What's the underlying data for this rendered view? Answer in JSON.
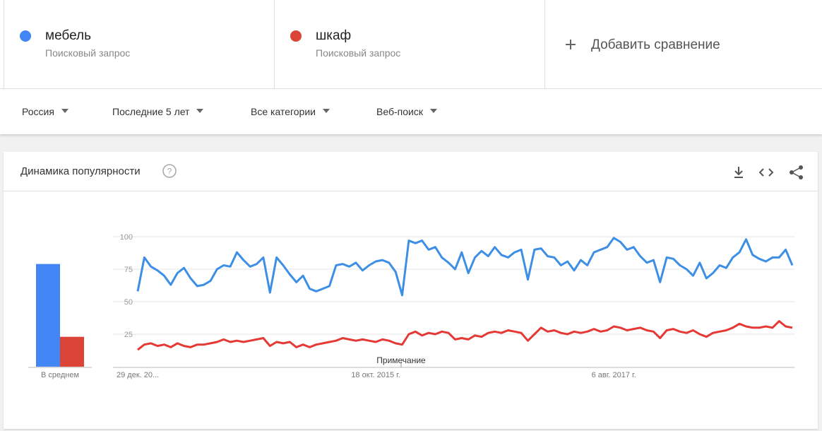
{
  "comparison": {
    "terms": [
      {
        "name": "мебель",
        "type": "Поисковый запрос"
      },
      {
        "name": "шкаф",
        "type": "Поисковый запрос"
      }
    ],
    "add": "Добавить сравнение"
  },
  "filters": [
    "Россия",
    "Последние 5 лет",
    "Все категории",
    "Веб-поиск"
  ],
  "card": {
    "title": "Динамика популярности"
  },
  "chart_data": {
    "type": "line",
    "average_label": "В среднем",
    "annotation": "Примечание",
    "xlim": [
      0,
      99
    ],
    "xticks": [
      {
        "value": 0,
        "label": "29 дек. 20..."
      },
      {
        "value": 36,
        "label": "18 окт. 2015 г."
      },
      {
        "value": 72,
        "label": "6 авг. 2017 г."
      }
    ],
    "ylim": [
      0,
      100
    ],
    "yticks": [
      25,
      50,
      75,
      100
    ],
    "grid": true,
    "series": [
      {
        "name": "мебель",
        "color": "#4285f4",
        "line_color": "#3d8fe6",
        "average": 79,
        "values": [
          58,
          84,
          77,
          74,
          70,
          63,
          72,
          76,
          68,
          62,
          63,
          66,
          75,
          78,
          77,
          88,
          82,
          77,
          79,
          84,
          57,
          84,
          78,
          71,
          65,
          70,
          60,
          58,
          60,
          62,
          78,
          79,
          77,
          80,
          74,
          78,
          81,
          82,
          80,
          73,
          55,
          97,
          95,
          97,
          90,
          92,
          84,
          80,
          75,
          88,
          72,
          84,
          89,
          85,
          92,
          86,
          84,
          88,
          90,
          67,
          90,
          91,
          85,
          84,
          78,
          81,
          74,
          82,
          78,
          88,
          90,
          92,
          99,
          96,
          90,
          92,
          85,
          80,
          82,
          65,
          84,
          83,
          78,
          75,
          70,
          80,
          68,
          72,
          78,
          76,
          84,
          88,
          98,
          86,
          83,
          81,
          84,
          84,
          90,
          78
        ]
      },
      {
        "name": "шкаф",
        "color": "#db4437",
        "line_color": "#e53935",
        "average": 23,
        "values": [
          13,
          17,
          18,
          16,
          17,
          15,
          18,
          16,
          15,
          17,
          17,
          18,
          19,
          21,
          19,
          20,
          19,
          20,
          21,
          22,
          16,
          19,
          18,
          19,
          15,
          17,
          15,
          17,
          18,
          19,
          20,
          22,
          21,
          20,
          21,
          20,
          19,
          21,
          20,
          18,
          17,
          25,
          27,
          24,
          26,
          25,
          27,
          26,
          21,
          22,
          21,
          24,
          23,
          26,
          27,
          26,
          28,
          27,
          26,
          20,
          25,
          30,
          27,
          28,
          26,
          25,
          27,
          26,
          27,
          29,
          27,
          28,
          31,
          30,
          28,
          29,
          30,
          28,
          27,
          22,
          28,
          29,
          27,
          26,
          28,
          25,
          23,
          26,
          27,
          28,
          30,
          33,
          31,
          30,
          30,
          31,
          30,
          35,
          31,
          30
        ]
      }
    ]
  }
}
